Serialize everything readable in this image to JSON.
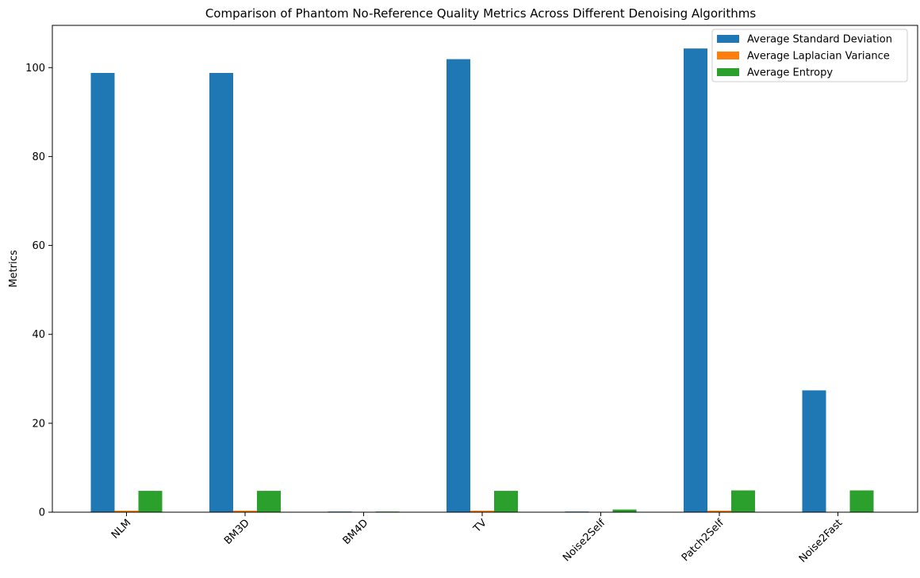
{
  "chart_data": {
    "type": "bar",
    "title": "Comparison of Phantom No-Reference Quality Metrics Across Different Denoising Algorithms",
    "xlabel": "",
    "ylabel": "Metrics",
    "categories": [
      "NLM",
      "BM3D",
      "BM4D",
      "TV",
      "Noise2Self",
      "Patch2Self",
      "Noise2Fast"
    ],
    "series": [
      {
        "name": "Average Standard Deviation",
        "color": "#1f77b4",
        "values": [
          98.8,
          98.8,
          0.15,
          101.9,
          0.15,
          104.3,
          27.4
        ]
      },
      {
        "name": "Average Laplacian Variance",
        "color": "#ff7f0e",
        "values": [
          0.35,
          0.35,
          0.01,
          0.35,
          0.01,
          0.35,
          0.02
        ]
      },
      {
        "name": "Average Entropy",
        "color": "#2ca02c",
        "values": [
          4.8,
          4.8,
          0.15,
          4.8,
          0.6,
          4.9,
          4.9
        ]
      }
    ],
    "ylim": [
      0,
      109.5
    ],
    "yticks": [
      0,
      20,
      40,
      60,
      80,
      100
    ],
    "grid": false,
    "legend_position": "top-right"
  }
}
